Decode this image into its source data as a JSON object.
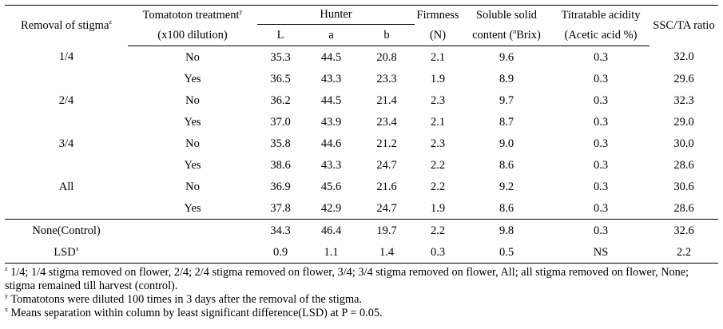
{
  "headers": {
    "removal": "Removal of stigma",
    "removal_sup": "z",
    "treatment_line1": "Tomatoton treatment",
    "treatment_sup": "y",
    "treatment_line2": "(x100 dilution)",
    "hunter": "Hunter",
    "hunter_L": "L",
    "hunter_a": "a",
    "hunter_b": "b",
    "firmness_line1": "Firmness",
    "firmness_line2": "(N)",
    "ssc_line1": "Soluble solid",
    "ssc_line2_pre": "content (",
    "ssc_line2_sup": "o",
    "ssc_line2_post": "Brix)",
    "ta_line1": "Titratable acidity",
    "ta_line2": "(Acetic acid %)",
    "ratio": "SSC/TA ratio"
  },
  "rows": [
    {
      "group": "1/4",
      "treatment": "No",
      "L": "35.3",
      "a": "44.5",
      "b": "20.8",
      "firmness": "2.1",
      "ssc": "9.6",
      "ta": "0.3",
      "ratio": "32.0"
    },
    {
      "group": "",
      "treatment": "Yes",
      "L": "36.5",
      "a": "43.3",
      "b": "23.3",
      "firmness": "1.9",
      "ssc": "8.9",
      "ta": "0.3",
      "ratio": "29.6"
    },
    {
      "group": "2/4",
      "treatment": "No",
      "L": "36.2",
      "a": "44.5",
      "b": "21.4",
      "firmness": "2.3",
      "ssc": "9.7",
      "ta": "0.3",
      "ratio": "32.3"
    },
    {
      "group": "",
      "treatment": "Yes",
      "L": "37.0",
      "a": "43.9",
      "b": "23.4",
      "firmness": "2.1",
      "ssc": "8.7",
      "ta": "0.3",
      "ratio": "29.0"
    },
    {
      "group": "3/4",
      "treatment": "No",
      "L": "35.8",
      "a": "44.6",
      "b": "21.2",
      "firmness": "2.3",
      "ssc": "9.0",
      "ta": "0.3",
      "ratio": "30.0"
    },
    {
      "group": "",
      "treatment": "Yes",
      "L": "38.6",
      "a": "43.3",
      "b": "24.7",
      "firmness": "2.2",
      "ssc": "8.6",
      "ta": "0.3",
      "ratio": "28.6"
    },
    {
      "group": "All",
      "treatment": "No",
      "L": "36.9",
      "a": "45.6",
      "b": "21.6",
      "firmness": "2.2",
      "ssc": "9.2",
      "ta": "0.3",
      "ratio": "30.6"
    },
    {
      "group": "",
      "treatment": "Yes",
      "L": "37.8",
      "a": "42.9",
      "b": "24.7",
      "firmness": "1.9",
      "ssc": "8.6",
      "ta": "0.3",
      "ratio": "28.6"
    }
  ],
  "control": {
    "group": "None(Control)",
    "treatment": "",
    "L": "34.3",
    "a": "46.4",
    "b": "19.7",
    "firmness": "2.2",
    "ssc": "9.8",
    "ta": "0.3",
    "ratio": "32.6"
  },
  "lsd": {
    "group": "LSD",
    "sup": "x",
    "treatment": "",
    "L": "0.9",
    "a": "1.1",
    "b": "1.4",
    "firmness": "0.3",
    "ssc": "0.5",
    "ta": "NS",
    "ratio": "2.2"
  },
  "notes": {
    "z_mark": "z",
    "z_text": " 1/4; 1/4 stigma removed on flower, 2/4; 2/4 stigma removed on flower, 3/4; 3/4 stigma removed on flower, All; all stigma removed on flower, None; stigma remained till harvest (control).",
    "y_mark": "y",
    "y_text": " Tomatotons were diluted 100 times in 3 days after the removal of the stigma.",
    "x_mark": "x",
    "x_text": " Means separation within column by least significant difference(LSD) at P = 0.05."
  }
}
